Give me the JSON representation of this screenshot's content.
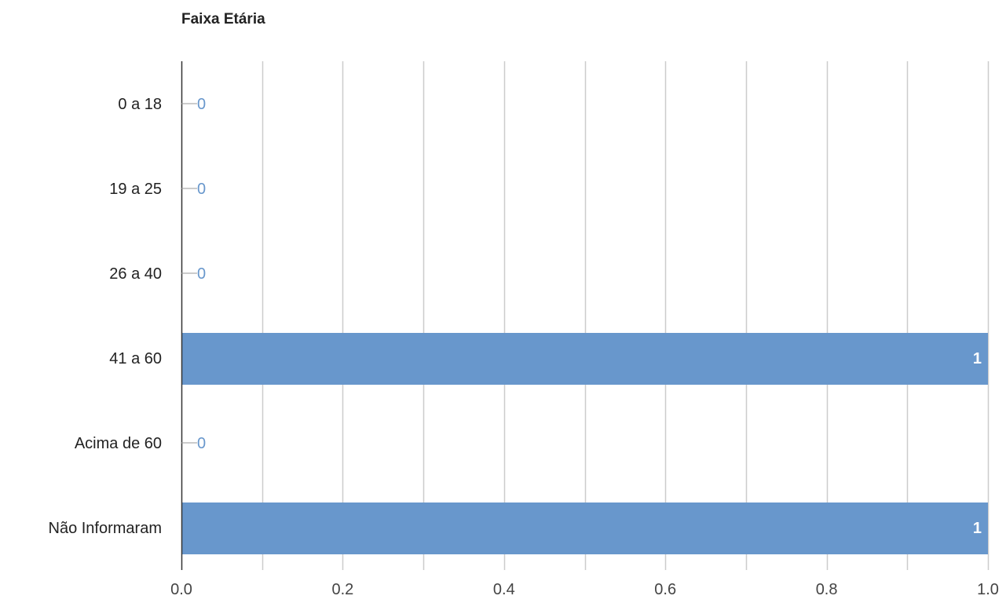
{
  "chart_data": {
    "type": "bar",
    "orientation": "horizontal",
    "title": "Faixa Etária",
    "categories": [
      "0 a 18",
      "19 a 25",
      "26 a 40",
      "41 a 60",
      "Acima de 60",
      "Não Informaram"
    ],
    "values": [
      0,
      0,
      0,
      1,
      0,
      1
    ],
    "data_labels": [
      "0",
      "0",
      "0",
      "1",
      "0",
      "1"
    ],
    "xlim": [
      0,
      1
    ],
    "x_ticks": [
      "0.0",
      "0.2",
      "0.4",
      "0.6",
      "0.8",
      "1.0"
    ],
    "grid": true,
    "bar_color": "#6897cc",
    "label_color_inside": "#ffffff",
    "label_color_outside": "#6897cc"
  }
}
